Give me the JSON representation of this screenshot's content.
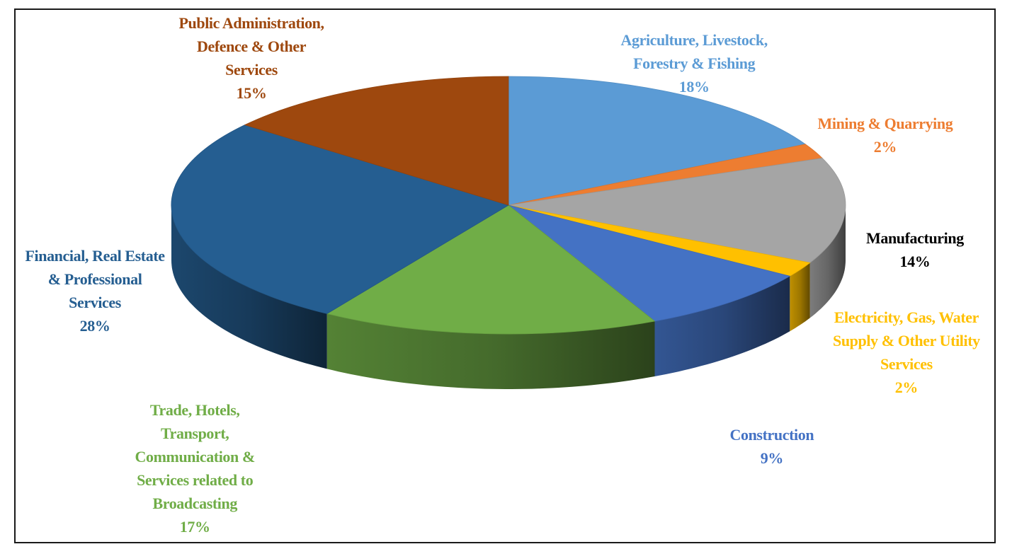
{
  "chart_data": {
    "type": "pie",
    "title": "",
    "slices": [
      {
        "name": "Agriculture, Livestock, Forestry & Fishing",
        "label_lines": [
          "Agriculture, Livestock,",
          "Forestry & Fishing"
        ],
        "pct_label": "18%",
        "value": 18,
        "color": "#5B9BD5"
      },
      {
        "name": "Mining & Quarrying",
        "label_lines": [
          "Mining & Quarrying"
        ],
        "pct_label": "2%",
        "value": 2,
        "color": "#ED7D31"
      },
      {
        "name": "Manufacturing",
        "label_lines": [
          "Manufacturing"
        ],
        "pct_label": "14%",
        "value": 14,
        "color": "#A5A5A5"
      },
      {
        "name": "Electricity, Gas, Water Supply & Other Utility Services",
        "label_lines": [
          "Electricity, Gas, Water",
          "Supply & Other Utility",
          "Services"
        ],
        "pct_label": "2%",
        "value": 2,
        "color": "#FFC000"
      },
      {
        "name": "Construction",
        "label_lines": [
          "Construction"
        ],
        "pct_label": "9%",
        "value": 9,
        "color": "#4472C4"
      },
      {
        "name": "Trade, Hotels, Transport, Communication & Services related to Broadcasting",
        "label_lines": [
          "Trade, Hotels,",
          "Transport,",
          "Communication &",
          "Services related to",
          "Broadcasting"
        ],
        "pct_label": "17%",
        "value": 17,
        "color": "#70AD47"
      },
      {
        "name": "Financial, Real Estate & Professional Services",
        "label_lines": [
          "Financial, Real Estate",
          "& Professional",
          "Services"
        ],
        "pct_label": "28%",
        "value": 28,
        "color": "#255E91"
      },
      {
        "name": "Public Administration, Defence & Other Services",
        "label_lines": [
          "Public Administration,",
          "Defence & Other",
          "Services"
        ],
        "pct_label": "15%",
        "value": 15,
        "color": "#9E480E"
      }
    ],
    "label_colors": [
      "#5B9BD5",
      "#ED7D31",
      "#000000",
      "#FFC000",
      "#4472C4",
      "#70AD47",
      "#255E91",
      "#9E480E"
    ],
    "legend": "none",
    "style": "3d"
  }
}
